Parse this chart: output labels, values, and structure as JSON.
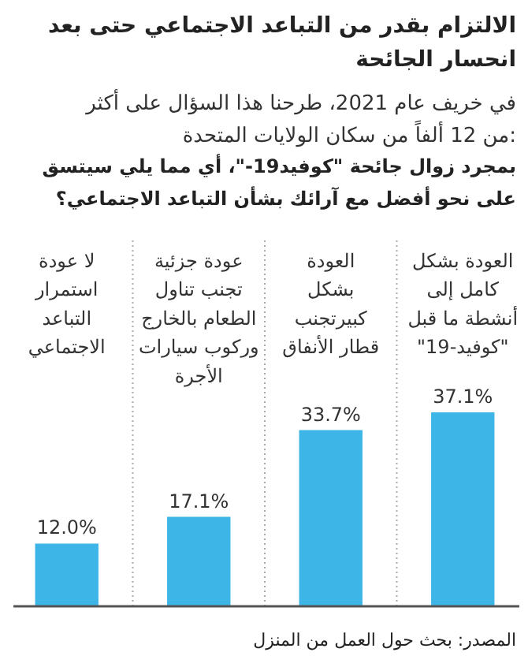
{
  "chart_data": {
    "type": "bar",
    "title": "الالتزام بقدر من التباعد الاجتماعي حتى بعد\nانحسار الجائحة",
    "subtitle": "في خريف عام 2021، طرحنا هذا السؤال على أكثر\nمن 12 ألفاً من سكان الولايات المتحدة:",
    "xlabel": "بمجرد زوال جائحة \"كوفيد19-\"، أي مما يلي سيتسق\nعلى نحو أفضل مع آرائك بشأن التباعد الاجتماعي؟",
    "categories": [
      "لا عودة\nاستمرار\nالتباعد\nالاجتماعي",
      "عودة جزئية\nتجنب تناول\nالطعام بالخارج\nوركوب سيارات\nالأجرة",
      "العودة\nبشكل\nكبيرتجنب\nقطار الأنفاق",
      "العودة بشكل\nكامل إلى\nأنشطة ما قبل\n\"كوفيد-19\""
    ],
    "values": [
      12.0,
      17.1,
      33.7,
      37.1
    ],
    "color": "#3db5e6",
    "value_labels": [
      "12.0%",
      "17.1%",
      "33.7%",
      "37.1%"
    ],
    "grid": "x",
    "annotations": [
      "المصدر: بحث حول العمل من المنزل"
    ]
  }
}
